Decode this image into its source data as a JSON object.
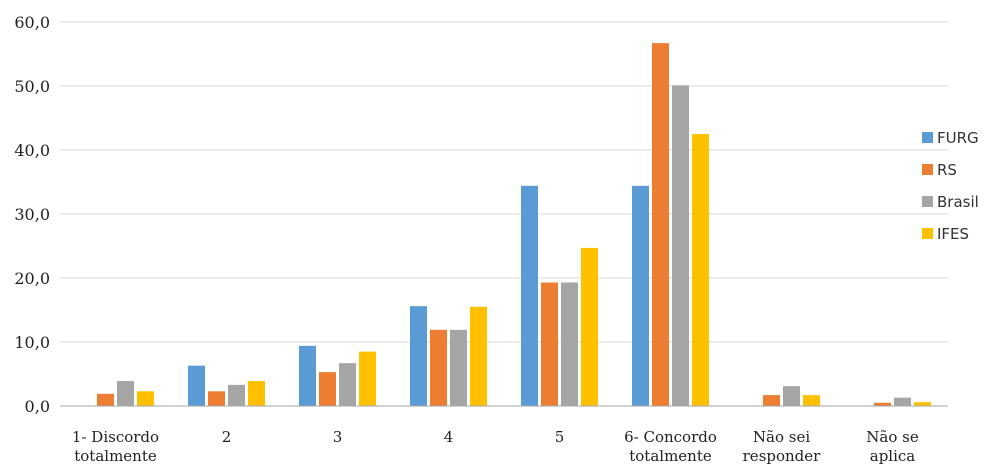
{
  "chart_data": {
    "type": "bar",
    "categories": [
      [
        "1- Discordo",
        "totalmente"
      ],
      [
        "2"
      ],
      [
        "3"
      ],
      [
        "4"
      ],
      [
        "5"
      ],
      [
        "6- Concordo",
        "totalmente"
      ],
      [
        "Não sei",
        "responder"
      ],
      [
        "Não se",
        "aplica"
      ]
    ],
    "series": [
      {
        "name": "FURG",
        "color": "#5B9BD5",
        "values": [
          0.0,
          6.3,
          9.4,
          15.6,
          34.4,
          34.4,
          0.0,
          0.0
        ]
      },
      {
        "name": "RS",
        "color": "#ED7D31",
        "values": [
          1.9,
          2.3,
          5.3,
          11.9,
          19.3,
          56.7,
          1.7,
          0.5
        ]
      },
      {
        "name": "Brasil",
        "color": "#A5A5A5",
        "values": [
          3.9,
          3.3,
          6.7,
          11.9,
          19.3,
          50.1,
          3.1,
          1.3
        ]
      },
      {
        "name": "IFES",
        "color": "#FFC000",
        "values": [
          2.3,
          3.9,
          8.5,
          15.5,
          24.7,
          42.5,
          1.7,
          0.6
        ]
      }
    ],
    "y_ticks": [
      "0,0",
      "10,0",
      "20,0",
      "30,0",
      "40,0",
      "50,0",
      "60,0"
    ],
    "ylim": [
      0,
      60
    ],
    "legend_position": "right",
    "grid": true,
    "title": "",
    "xlabel": "",
    "ylabel": ""
  }
}
